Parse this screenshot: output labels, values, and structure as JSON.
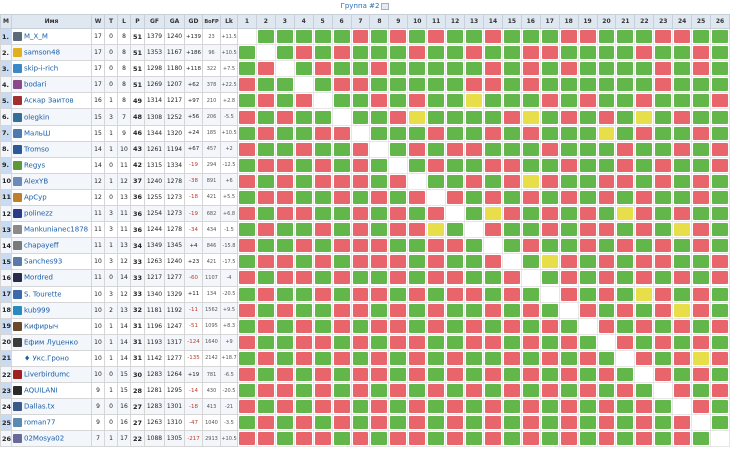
{
  "title": "Группа #2",
  "colors": {
    "win": "#63b74a",
    "loss": "#e8656b",
    "draw": "#e8de4a",
    "header": "#dfe7f0",
    "link": "#1a5ea8"
  },
  "headers": {
    "pos": "M",
    "name": "Имя",
    "w": "W",
    "t": "T",
    "l": "L",
    "p": "P",
    "gf": "GF",
    "ga": "GA",
    "gd": "GD",
    "bofp": "BoFP",
    "lk": "Lk"
  },
  "opponents": [
    "1",
    "2",
    "3",
    "4",
    "5",
    "6",
    "7",
    "8",
    "9",
    "10",
    "11",
    "12",
    "13",
    "14",
    "15",
    "16",
    "17",
    "18",
    "19",
    "20",
    "21",
    "22",
    "23",
    "24",
    "25",
    "26"
  ],
  "rows": [
    {
      "pos": "1.",
      "name": "M_X_M",
      "w": "17",
      "t": "0",
      "l": "8",
      "p": "51",
      "gf": "1379",
      "ga": "1240",
      "gd": "+139",
      "bofp": "23",
      "lk": "+11.5",
      "av": "#5b6a7a"
    },
    {
      "pos": "2.",
      "name": "samson48",
      "w": "17",
      "t": "0",
      "l": "8",
      "p": "51",
      "gf": "1353",
      "ga": "1167",
      "gd": "+186",
      "bofp": "96",
      "lk": "+10.5",
      "av": "#e0b020"
    },
    {
      "pos": "3.",
      "name": "skip-i-rich",
      "w": "17",
      "t": "0",
      "l": "8",
      "p": "51",
      "gf": "1298",
      "ga": "1180",
      "gd": "+118",
      "bofp": "322",
      "lk": "+7.5",
      "av": "#3a88c8"
    },
    {
      "pos": "4.",
      "name": "bodari",
      "w": "17",
      "t": "0",
      "l": "8",
      "p": "51",
      "gf": "1269",
      "ga": "1207",
      "gd": "+62",
      "bofp": "378",
      "lk": "+22.5",
      "av": "#8a4a8a"
    },
    {
      "pos": "5.",
      "name": "Аскар Заитов",
      "w": "16",
      "t": "1",
      "l": "8",
      "p": "49",
      "gf": "1314",
      "ga": "1217",
      "gd": "+97",
      "bofp": "210",
      "lk": "+2.8",
      "av": "#a03030"
    },
    {
      "pos": "6.",
      "name": "olegkin",
      "w": "15",
      "t": "3",
      "l": "7",
      "p": "48",
      "gf": "1308",
      "ga": "1252",
      "gd": "+56",
      "bofp": "206",
      "lk": "-5.5",
      "av": "#30709a"
    },
    {
      "pos": "7.",
      "name": "МальШ",
      "w": "15",
      "t": "1",
      "l": "9",
      "p": "46",
      "gf": "1344",
      "ga": "1320",
      "gd": "+24",
      "bofp": "185",
      "lk": "+10.5",
      "av": "#4a7ab0"
    },
    {
      "pos": "8.",
      "name": "Tromso",
      "w": "14",
      "t": "1",
      "l": "10",
      "p": "43",
      "gf": "1261",
      "ga": "1194",
      "gd": "+67",
      "bofp": "457",
      "lk": "+2",
      "av": "#2a5a9a"
    },
    {
      "pos": "9.",
      "name": "Regys",
      "w": "14",
      "t": "0",
      "l": "11",
      "p": "42",
      "gf": "1315",
      "ga": "1334",
      "gd": "-19",
      "bofp": "294",
      "lk": "-12.5",
      "av": "#5a9a3a"
    },
    {
      "pos": "10.",
      "name": "AlexYB",
      "w": "12",
      "t": "1",
      "l": "12",
      "p": "37",
      "gf": "1240",
      "ga": "1278",
      "gd": "-38",
      "bofp": "891",
      "lk": "+6",
      "av": "#6a8aba"
    },
    {
      "pos": "11.",
      "name": "ApCyp",
      "w": "12",
      "t": "0",
      "l": "13",
      "p": "36",
      "gf": "1255",
      "ga": "1273",
      "gd": "-18",
      "bofp": "421",
      "lk": "+5.5",
      "av": "#c0802a"
    },
    {
      "pos": "12.",
      "name": "polinezz",
      "w": "11",
      "t": "3",
      "l": "11",
      "p": "36",
      "gf": "1254",
      "ga": "1273",
      "gd": "-19",
      "bofp": "682",
      "lk": "+6.8",
      "av": "#2a3a8a"
    },
    {
      "pos": "13.",
      "name": "Mankunianec1878",
      "w": "11",
      "t": "3",
      "l": "11",
      "p": "36",
      "gf": "1244",
      "ga": "1278",
      "gd": "-34",
      "bofp": "434",
      "lk": "-1.5",
      "av": "#8a8a8a"
    },
    {
      "pos": "14.",
      "name": "chapayeff",
      "w": "11",
      "t": "1",
      "l": "13",
      "p": "34",
      "gf": "1349",
      "ga": "1345",
      "gd": "+4",
      "bofp": "846",
      "lk": "-15.8",
      "av": "#7a7a7a"
    },
    {
      "pos": "15.",
      "name": "Sanches93",
      "w": "10",
      "t": "3",
      "l": "12",
      "p": "33",
      "gf": "1263",
      "ga": "1240",
      "gd": "+23",
      "bofp": "421",
      "lk": "-17.5",
      "av": "#5a7aaa"
    },
    {
      "pos": "16.",
      "name": "Mordred",
      "w": "11",
      "t": "0",
      "l": "14",
      "p": "33",
      "gf": "1217",
      "ga": "1277",
      "gd": "-60",
      "bofp": "1107",
      "lk": "-4",
      "av": "#2a2a4a"
    },
    {
      "pos": "17.",
      "name": "S. Tourette",
      "w": "10",
      "t": "3",
      "l": "12",
      "p": "33",
      "gf": "1340",
      "ga": "1329",
      "gd": "+11",
      "bofp": "134",
      "lk": "-20.5",
      "av": "#3a6aaa"
    },
    {
      "pos": "18.",
      "name": "kub999",
      "w": "10",
      "t": "2",
      "l": "13",
      "p": "32",
      "gf": "1181",
      "ga": "1192",
      "gd": "-11",
      "bofp": "1562",
      "lk": "+9.5",
      "av": "#2a8ac0"
    },
    {
      "pos": "19.",
      "name": "Кифирыч",
      "w": "10",
      "t": "1",
      "l": "14",
      "p": "31",
      "gf": "1196",
      "ga": "1247",
      "gd": "-51",
      "bofp": "1095",
      "lk": "+8.3",
      "av": "#6a4a2a"
    },
    {
      "pos": "20.",
      "name": "Ефим Луценко",
      "w": "10",
      "t": "1",
      "l": "14",
      "p": "31",
      "gf": "1193",
      "ga": "1317",
      "gd": "-124",
      "bofp": "1640",
      "lk": "+9",
      "av": "#3a3a3a"
    },
    {
      "pos": "21.",
      "name": "♦ Укс.Гроно",
      "w": "10",
      "t": "1",
      "l": "14",
      "p": "31",
      "gf": "1142",
      "ga": "1277",
      "gd": "-135",
      "bofp": "2142",
      "lk": "+18.7",
      "av": "#ffffff"
    },
    {
      "pos": "22.",
      "name": "Liverbirdumc",
      "w": "10",
      "t": "0",
      "l": "15",
      "p": "30",
      "gf": "1283",
      "ga": "1264",
      "gd": "+19",
      "bofp": "781",
      "lk": "-6.5",
      "av": "#a02020"
    },
    {
      "pos": "23.",
      "name": "AQUILANI",
      "w": "9",
      "t": "1",
      "l": "15",
      "p": "28",
      "gf": "1281",
      "ga": "1295",
      "gd": "-14",
      "bofp": "430",
      "lk": "-20.5",
      "av": "#2a2a2a"
    },
    {
      "pos": "24.",
      "name": "Dallas.tx",
      "w": "9",
      "t": "0",
      "l": "16",
      "p": "27",
      "gf": "1283",
      "ga": "1301",
      "gd": "-18",
      "bofp": "413",
      "lk": "-21",
      "av": "#3a5a8a"
    },
    {
      "pos": "25.",
      "name": "roman77",
      "w": "9",
      "t": "0",
      "l": "16",
      "p": "27",
      "gf": "1263",
      "ga": "1310",
      "gd": "-47",
      "bofp": "1040",
      "lk": "-3.5",
      "av": "#5a8ab0"
    },
    {
      "pos": "26.",
      "name": "02Mosya02",
      "w": "7",
      "t": "1",
      "l": "17",
      "p": "22",
      "gf": "1088",
      "ga": "1305",
      "gd": "-217",
      "bofp": "2913",
      "lk": "+10.5",
      "av": "#6a6a9a"
    }
  ],
  "results": [
    "-WWWWWLWLWLWWLWWWLLWWWLLWW",
    "W-WLWLWWWLWWLWWLLWWWWLWWLW",
    "WL-WLWWLWWWWWLWLWLWWWWLWLW",
    "LWW-WLLWWWWWLLWLWWWWWWLWWW",
    "WLWL-WWLWLWWDWWWLWLWWLWWWL",
    "LWLWW-WWLDWWWWLDWLWLWDWLWW",
    "WLWWLL-WWWLWWLWLWWWDWLWWLW",
    "LWWLWWL-WLWLLWWWLWWWLWWLWL",
    "WLLWLWLW-WLWWLLWWLWWLWLWWL",
    "LWLWLLLWL-WWLWLDLWWLLWLWLW",
    "WLLWWLWLWL-LWLWLWLWLWLWWLW",
    "LWLLWWLWLWL-WDLWLWLWDLWLWW",
    "WLWWLWLWLLDW-LWWLWLLWLWDLW",
    "LWWLWLLLWWLLW-WLWWLWLWLWLW",
    "WLLWLWLLLWLWWL-WDLWLWLLWWL",
    "LWLLWLWWLWLLWWL-WLWLWLWLWL",
    "WLWWLWLLWLWLLWLW-LWLWDLWLW",
    "LWLWWLLWLWLWWLWLW-LWLWLDLW",
    "WLWLWLWLLWLWLWLWLW-LWLWLWL",
    "LWWLLWLWLLWWLLWLWLW-LWLWLW",
    "WLWLWLWLWLWLWWLWLWLW-LWLDL",
    "LWLWLWLLWLWLWLWLWLWLW-LWLW",
    "WLLWLWLWLWLWLWLWLWLWLW-LWL",
    "LWLWLLWLWLWLWLWLWLWLWLW-LW",
    "WLWLWLWLWLWLWLWLWLWLWLWL-W",
    "LLWLLWLWLLWLWLWLWLWLWLWLW-"
  ],
  "cell_scores_note": "",
  "self_marker": ""
}
